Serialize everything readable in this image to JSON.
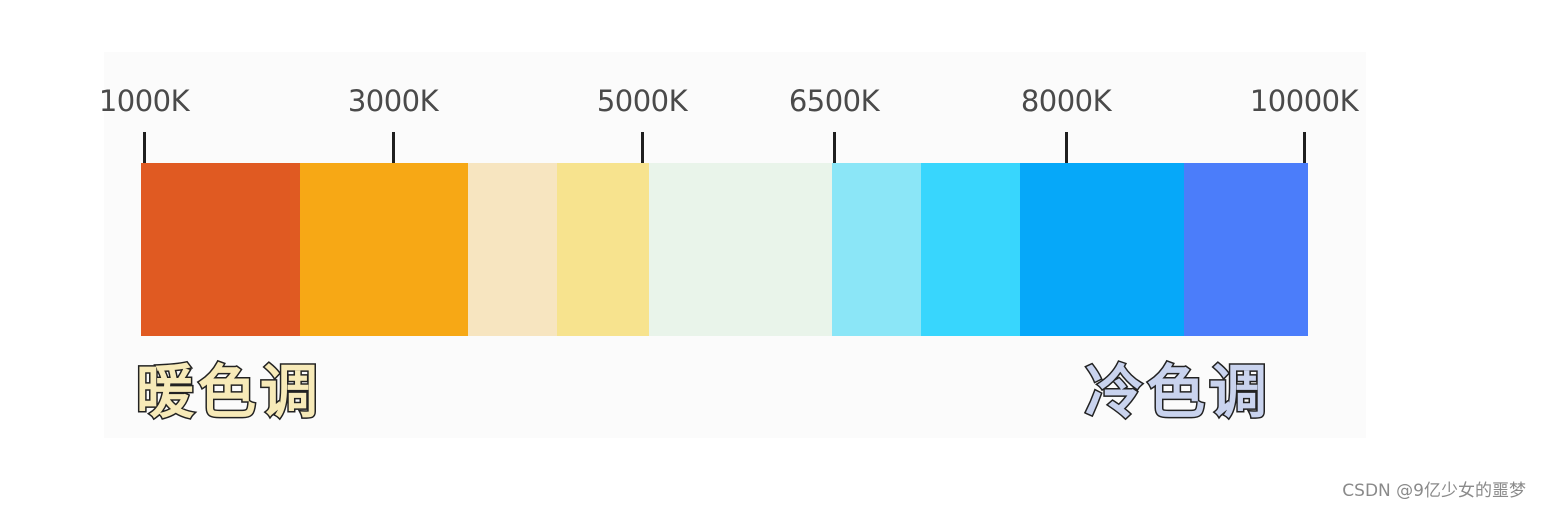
{
  "ticks": [
    {
      "label": "1000K"
    },
    {
      "label": "3000K"
    },
    {
      "label": "5000K"
    },
    {
      "label": "6500K"
    },
    {
      "label": "8000K"
    },
    {
      "label": "10000K"
    }
  ],
  "swatches": [
    {
      "name": "swatch-deep-orange",
      "color": "#e05a22"
    },
    {
      "name": "swatch-orange",
      "color": "#f7a815"
    },
    {
      "name": "swatch-pale-peach",
      "color": "#f7e5c0"
    },
    {
      "name": "swatch-light-yellow",
      "color": "#f7e38e"
    },
    {
      "name": "swatch-near-white",
      "color": "#e9f4ea"
    },
    {
      "name": "swatch-pale-cyan",
      "color": "#8be6f7"
    },
    {
      "name": "swatch-cyan",
      "color": "#38d6fd"
    },
    {
      "name": "swatch-blue",
      "color": "#06a8f9"
    },
    {
      "name": "swatch-indigo",
      "color": "#4b7dfa"
    }
  ],
  "labels": {
    "warm": "暖色调",
    "cool": "冷色调"
  },
  "watermark": "CSDN @9亿少女的噩梦"
}
